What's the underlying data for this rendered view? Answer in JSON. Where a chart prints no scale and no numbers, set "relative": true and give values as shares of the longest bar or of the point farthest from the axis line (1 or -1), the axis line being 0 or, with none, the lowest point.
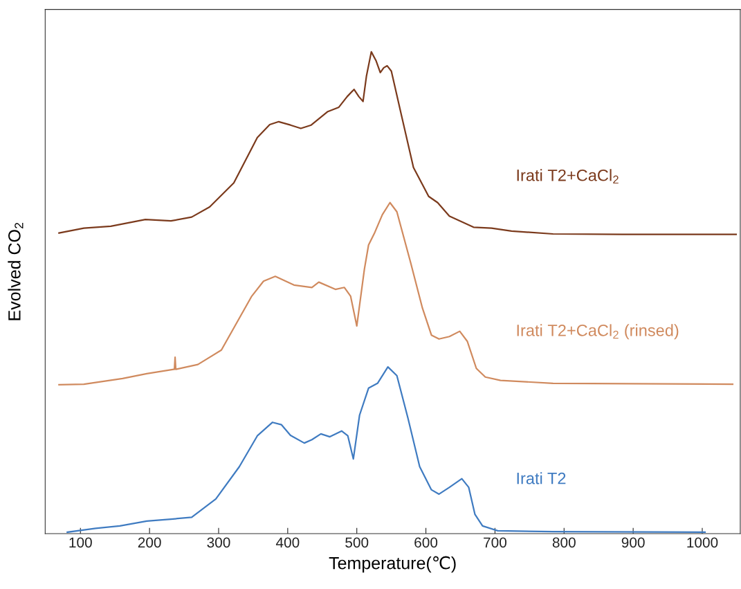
{
  "chart_data": {
    "type": "line",
    "xlabel": "Temperature(℃)",
    "ylabel": "Evolved CO$_{2}$",
    "relative": true,
    "xlim": [
      49,
      1055
    ],
    "xticks": [
      100,
      200,
      300,
      400,
      500,
      600,
      700,
      800,
      900,
      1000
    ],
    "grid": false,
    "legend": false,
    "marker": "none",
    "line_style": "solid",
    "tick_labels": "x",
    "series": [
      {
        "name": "Irati T2+CaCl$_{2}$",
        "color": "#7b3a1c",
        "x": [
          69,
          105,
          144,
          194,
          231,
          261,
          287,
          322,
          356,
          374,
          387,
          404,
          419,
          434,
          458,
          474,
          486,
          496,
          503,
          509,
          514,
          521,
          528,
          534,
          539,
          544,
          550,
          565,
          582,
          604,
          617,
          634,
          669,
          695,
          724,
          784,
          884,
          984,
          1049
        ],
        "values": [
          0.624,
          0.634,
          0.638,
          0.652,
          0.649,
          0.657,
          0.678,
          0.728,
          0.822,
          0.849,
          0.855,
          0.848,
          0.841,
          0.848,
          0.876,
          0.885,
          0.907,
          0.922,
          0.907,
          0.897,
          0.95,
          1.0,
          0.981,
          0.957,
          0.967,
          0.971,
          0.96,
          0.866,
          0.76,
          0.7,
          0.687,
          0.659,
          0.636,
          0.634,
          0.628,
          0.622,
          0.621,
          0.621,
          0.621
        ]
      },
      {
        "name": "Irati T2+CaCl$_{2}$ (rinsed)",
        "color": "#d08a5e",
        "x": [
          69,
          105,
          161,
          196,
          235,
          236,
          237,
          238,
          270,
          304,
          348,
          365,
          382,
          409,
          435,
          445,
          469,
          482,
          491,
          500,
          511,
          517,
          526,
          537,
          548,
          558,
          578,
          595,
          608,
          619,
          634,
          649,
          660,
          673,
          686,
          708,
          784,
          1044
        ],
        "values": [
          0.309,
          0.31,
          0.322,
          0.332,
          0.341,
          0.341,
          0.366,
          0.341,
          0.351,
          0.381,
          0.493,
          0.524,
          0.534,
          0.516,
          0.511,
          0.522,
          0.507,
          0.511,
          0.493,
          0.431,
          0.549,
          0.599,
          0.625,
          0.662,
          0.687,
          0.668,
          0.562,
          0.468,
          0.412,
          0.404,
          0.409,
          0.42,
          0.399,
          0.343,
          0.325,
          0.318,
          0.312,
          0.31
        ]
      },
      {
        "name": "Irati T2",
        "color": "#3f7bc1",
        "x": [
          81,
          122,
          157,
          196,
          231,
          261,
          296,
          330,
          356,
          378,
          391,
          404,
          424,
          435,
          448,
          461,
          478,
          487,
          495,
          504,
          517,
          530,
          545,
          558,
          574,
          591,
          608,
          619,
          634,
          652,
          662,
          671,
          682,
          704,
          784,
          1004
        ],
        "values": [
          0.003,
          0.011,
          0.016,
          0.026,
          0.03,
          0.034,
          0.072,
          0.139,
          0.203,
          0.231,
          0.226,
          0.204,
          0.188,
          0.195,
          0.207,
          0.201,
          0.213,
          0.203,
          0.155,
          0.246,
          0.302,
          0.312,
          0.346,
          0.328,
          0.24,
          0.139,
          0.091,
          0.082,
          0.096,
          0.114,
          0.096,
          0.04,
          0.016,
          0.006,
          0.004,
          0.003
        ]
      }
    ]
  }
}
